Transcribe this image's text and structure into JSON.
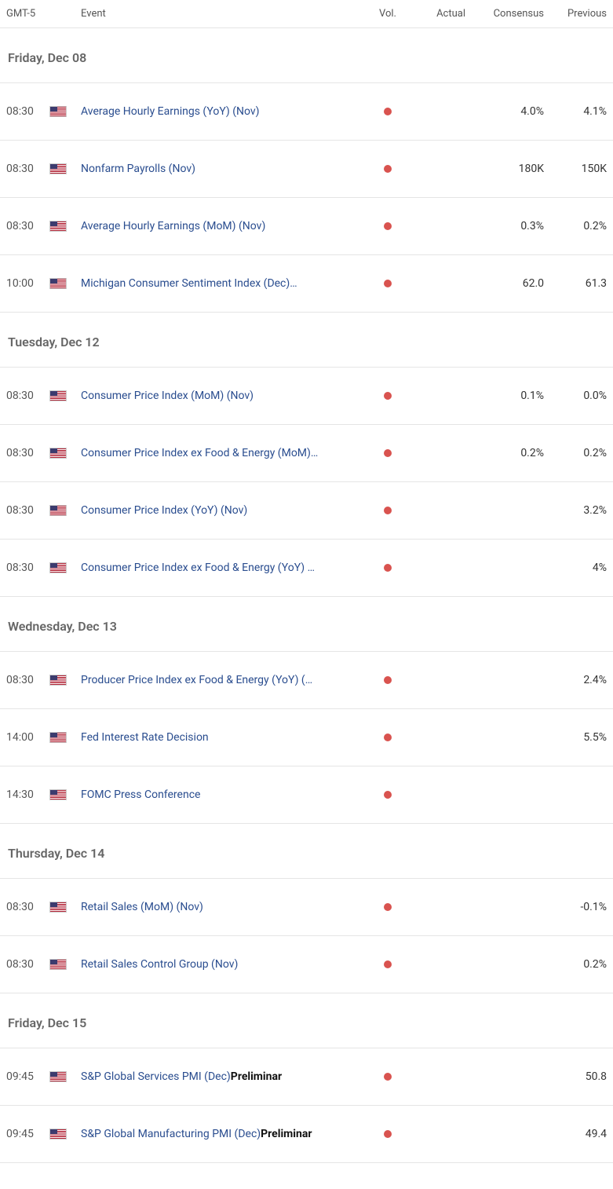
{
  "colors": {
    "vol_dot": "#d9534f",
    "event_link": "#2a4d8f",
    "border": "#e5e5e5",
    "date_text": "#666666",
    "body_text": "#333333",
    "muted_text": "#555555"
  },
  "header": {
    "time": "GMT-5",
    "event": "Event",
    "vol": "Vol.",
    "actual": "Actual",
    "consensus": "Consensus",
    "previous": "Previous"
  },
  "groups": [
    {
      "date": "Friday, Dec 08",
      "events": [
        {
          "time": "08:30",
          "flag": "US",
          "name": "Average Hourly Earnings (YoY) (Nov)",
          "suffix": "",
          "actual": "",
          "consensus": "4.0%",
          "previous": "4.1%"
        },
        {
          "time": "08:30",
          "flag": "US",
          "name": "Nonfarm Payrolls (Nov)",
          "suffix": "",
          "actual": "",
          "consensus": "180K",
          "previous": "150K"
        },
        {
          "time": "08:30",
          "flag": "US",
          "name": "Average Hourly Earnings (MoM) (Nov)",
          "suffix": "",
          "actual": "",
          "consensus": "0.3%",
          "previous": "0.2%"
        },
        {
          "time": "10:00",
          "flag": "US",
          "name": "Michigan Consumer Sentiment Index (Dec)…",
          "suffix": "",
          "actual": "",
          "consensus": "62.0",
          "previous": "61.3"
        }
      ]
    },
    {
      "date": "Tuesday, Dec 12",
      "events": [
        {
          "time": "08:30",
          "flag": "US",
          "name": "Consumer Price Index (MoM) (Nov)",
          "suffix": "",
          "actual": "",
          "consensus": "0.1%",
          "previous": "0.0%"
        },
        {
          "time": "08:30",
          "flag": "US",
          "name": "Consumer Price Index ex Food & Energy (MoM)…",
          "suffix": "",
          "actual": "",
          "consensus": "0.2%",
          "previous": "0.2%"
        },
        {
          "time": "08:30",
          "flag": "US",
          "name": "Consumer Price Index (YoY) (Nov)",
          "suffix": "",
          "actual": "",
          "consensus": "",
          "previous": "3.2%"
        },
        {
          "time": "08:30",
          "flag": "US",
          "name": "Consumer Price Index ex Food & Energy (YoY) …",
          "suffix": "",
          "actual": "",
          "consensus": "",
          "previous": "4%"
        }
      ]
    },
    {
      "date": "Wednesday, Dec 13",
      "events": [
        {
          "time": "08:30",
          "flag": "US",
          "name": "Producer Price Index ex Food & Energy (YoY) (…",
          "suffix": "",
          "actual": "",
          "consensus": "",
          "previous": "2.4%"
        },
        {
          "time": "14:00",
          "flag": "US",
          "name": "Fed Interest Rate Decision",
          "suffix": "",
          "actual": "",
          "consensus": "",
          "previous": "5.5%"
        },
        {
          "time": "14:30",
          "flag": "US",
          "name": "FOMC Press Conference",
          "suffix": "",
          "actual": "",
          "consensus": "",
          "previous": ""
        }
      ]
    },
    {
      "date": "Thursday, Dec 14",
      "events": [
        {
          "time": "08:30",
          "flag": "US",
          "name": "Retail Sales (MoM) (Nov)",
          "suffix": "",
          "actual": "",
          "consensus": "",
          "previous": "-0.1%"
        },
        {
          "time": "08:30",
          "flag": "US",
          "name": "Retail Sales Control Group (Nov)",
          "suffix": "",
          "actual": "",
          "consensus": "",
          "previous": "0.2%"
        }
      ]
    },
    {
      "date": "Friday, Dec 15",
      "events": [
        {
          "time": "09:45",
          "flag": "US",
          "name": "S&P Global Services PMI (Dec)",
          "suffix": "Preliminar",
          "actual": "",
          "consensus": "",
          "previous": "50.8"
        },
        {
          "time": "09:45",
          "flag": "US",
          "name": "S&P Global Manufacturing PMI (Dec)",
          "suffix": "Preliminar",
          "actual": "",
          "consensus": "",
          "previous": "49.4"
        }
      ]
    }
  ]
}
